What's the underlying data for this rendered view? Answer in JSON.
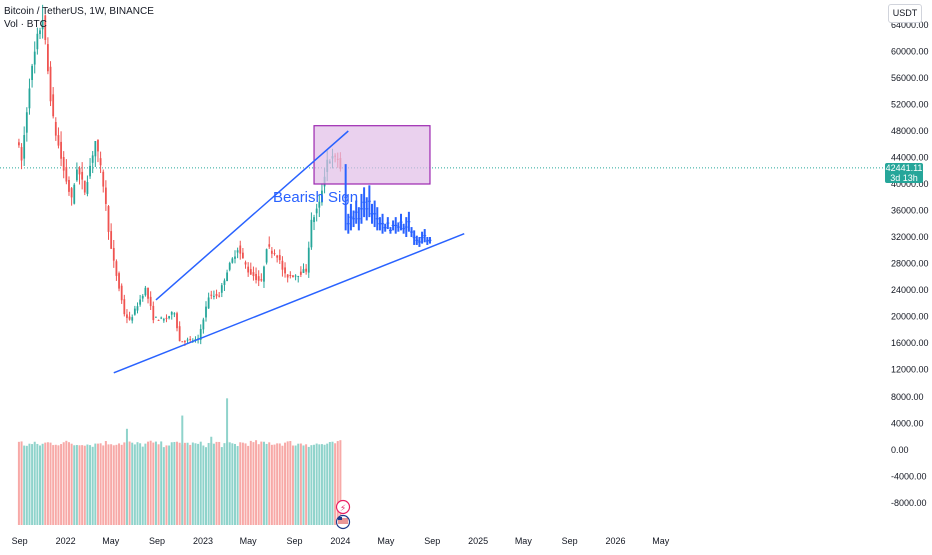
{
  "header": {
    "symbol": "Bitcoin / TetherUS, 1W, BINANCE",
    "volume_label": "Vol · BTC"
  },
  "currency_button": "USDT",
  "last_price": {
    "value": "42441.11",
    "countdown": "3d 13h"
  },
  "annotation": "Bearish Sign",
  "colors": {
    "up": "#26a69a",
    "down": "#ef5350",
    "vol_up": "#8fd3cb",
    "vol_down": "#f7a9a7",
    "trendline": "#2962ff",
    "projection": "#2962ff",
    "box_fill": "#e1bee7",
    "box_stroke": "#9c27b0",
    "price_line": "#26a69a",
    "axis_text": "#131722"
  },
  "icons": [
    "lightning-icon",
    "us-flag-icon"
  ],
  "chart_data": {
    "type": "candlestick",
    "interval": "1W",
    "price_axis": {
      "ticks": [
        64000,
        60000,
        56000,
        52000,
        48000,
        44000,
        40000,
        36000,
        32000,
        28000,
        24000,
        20000,
        16000,
        12000
      ],
      "tick_labels": [
        "64000.00",
        "60000.00",
        "56000.00",
        "52000.00",
        "48000.00",
        "44000.00",
        "40000.00",
        "36000.00",
        "32000.00",
        "28000.00",
        "24000.00",
        "20000.00",
        "16000.00",
        "12000.00"
      ]
    },
    "volume_axis": {
      "ticks": [
        8000,
        4000,
        0,
        -4000,
        -8000
      ],
      "tick_labels": [
        "8000.00",
        "4000.00",
        "0.00",
        "-4000.00",
        "-8000.00"
      ]
    },
    "time_axis": {
      "labels": [
        "Sep",
        "2022",
        "May",
        "Sep",
        "2023",
        "May",
        "Sep",
        "2024",
        "May",
        "Sep",
        "2025",
        "May",
        "Sep",
        "2026",
        "May"
      ],
      "positions": [
        "2021-09",
        "2022-01",
        "2022-05",
        "2022-09",
        "2023-01",
        "2023-05",
        "2023-09",
        "2024-01",
        "2024-05",
        "2024-09",
        "2025-01",
        "2025-05",
        "2025-09",
        "2026-01",
        "2026-05"
      ]
    },
    "price_anchors": [
      {
        "date": "2021-08-30",
        "close": 47000
      },
      {
        "date": "2021-09-13",
        "close": 43500
      },
      {
        "date": "2021-10-04",
        "close": 55000
      },
      {
        "date": "2021-10-25",
        "close": 62000
      },
      {
        "date": "2021-11-08",
        "close": 65000
      },
      {
        "date": "2021-11-22",
        "close": 57000
      },
      {
        "date": "2021-12-06",
        "close": 49500
      },
      {
        "date": "2022-01-03",
        "close": 42000
      },
      {
        "date": "2022-01-24",
        "close": 37500
      },
      {
        "date": "2022-02-07",
        "close": 42500
      },
      {
        "date": "2022-02-28",
        "close": 39000
      },
      {
        "date": "2022-03-28",
        "close": 46500
      },
      {
        "date": "2022-04-18",
        "close": 40000
      },
      {
        "date": "2022-05-09",
        "close": 30000
      },
      {
        "date": "2022-06-13",
        "close": 20500
      },
      {
        "date": "2022-06-27",
        "close": 19300
      },
      {
        "date": "2022-08-08",
        "close": 24200
      },
      {
        "date": "2022-08-29",
        "close": 19800
      },
      {
        "date": "2022-09-26",
        "close": 19500
      },
      {
        "date": "2022-10-24",
        "close": 20700
      },
      {
        "date": "2022-11-07",
        "close": 16300
      },
      {
        "date": "2022-12-26",
        "close": 16500
      },
      {
        "date": "2023-01-23",
        "close": 23000
      },
      {
        "date": "2023-02-20",
        "close": 23300
      },
      {
        "date": "2023-03-13",
        "close": 26900
      },
      {
        "date": "2023-04-10",
        "close": 30300
      },
      {
        "date": "2023-05-08",
        "close": 26900
      },
      {
        "date": "2023-06-12",
        "close": 25100
      },
      {
        "date": "2023-06-26",
        "close": 30500
      },
      {
        "date": "2023-07-24",
        "close": 29300
      },
      {
        "date": "2023-08-14",
        "close": 26100
      },
      {
        "date": "2023-09-11",
        "close": 26300
      },
      {
        "date": "2023-10-09",
        "close": 27000
      },
      {
        "date": "2023-10-23",
        "close": 34300
      },
      {
        "date": "2023-11-13",
        "close": 37000
      },
      {
        "date": "2023-12-04",
        "close": 43700
      },
      {
        "date": "2024-01-01",
        "close": 43900
      },
      {
        "date": "2024-01-08",
        "close": 42441
      }
    ],
    "trendlines": [
      {
        "start": {
          "date": "2022-05-09",
          "price": 11500
        },
        "end": {
          "date": "2024-11-25",
          "price": 32500
        }
      },
      {
        "start": {
          "date": "2022-08-29",
          "price": 22500
        },
        "end": {
          "date": "2024-01-22",
          "price": 48000
        }
      }
    ],
    "rectangle": {
      "start": {
        "date": "2023-10-23",
        "price": 48800
      },
      "end": {
        "date": "2024-08-26",
        "price": 40000
      }
    },
    "projected_bars": [
      {
        "date": "2024-01-15",
        "high": 43000,
        "low": 33000
      },
      {
        "date": "2024-01-22",
        "high": 35500,
        "low": 32500
      },
      {
        "date": "2024-01-29",
        "high": 37000,
        "low": 33000
      },
      {
        "date": "2024-02-05",
        "high": 36000,
        "low": 33500
      },
      {
        "date": "2024-02-12",
        "high": 37500,
        "low": 34000
      },
      {
        "date": "2024-02-19",
        "high": 36500,
        "low": 33000
      },
      {
        "date": "2024-02-26",
        "high": 38500,
        "low": 34000
      },
      {
        "date": "2024-03-04",
        "high": 39500,
        "low": 35000
      },
      {
        "date": "2024-03-11",
        "high": 38000,
        "low": 34500
      },
      {
        "date": "2024-03-18",
        "high": 39800,
        "low": 35000
      },
      {
        "date": "2024-03-25",
        "high": 37000,
        "low": 34000
      },
      {
        "date": "2024-04-01",
        "high": 37500,
        "low": 33500
      },
      {
        "date": "2024-04-08",
        "high": 36500,
        "low": 33000
      },
      {
        "date": "2024-04-15",
        "high": 35000,
        "low": 33000
      },
      {
        "date": "2024-04-22",
        "high": 35500,
        "low": 32500
      },
      {
        "date": "2024-04-29",
        "high": 34000,
        "low": 32800
      },
      {
        "date": "2024-05-06",
        "high": 35000,
        "low": 33200
      },
      {
        "date": "2024-05-13",
        "high": 33500,
        "low": 32500
      },
      {
        "date": "2024-05-20",
        "high": 34500,
        "low": 33000
      },
      {
        "date": "2024-05-27",
        "high": 35000,
        "low": 32500
      },
      {
        "date": "2024-06-03",
        "high": 34200,
        "low": 32800
      },
      {
        "date": "2024-06-10",
        "high": 35500,
        "low": 33000
      },
      {
        "date": "2024-06-17",
        "high": 34000,
        "low": 32500
      },
      {
        "date": "2024-06-24",
        "high": 35000,
        "low": 32000
      },
      {
        "date": "2024-07-01",
        "high": 35800,
        "low": 32800
      },
      {
        "date": "2024-07-08",
        "high": 33500,
        "low": 32000
      },
      {
        "date": "2024-07-15",
        "high": 33000,
        "low": 30800
      },
      {
        "date": "2024-07-22",
        "high": 32200,
        "low": 30800
      },
      {
        "date": "2024-07-29",
        "high": 32000,
        "low": 30500
      },
      {
        "date": "2024-08-05",
        "high": 32800,
        "low": 31000
      },
      {
        "date": "2024-08-12",
        "high": 33200,
        "low": 31200
      },
      {
        "date": "2024-08-19",
        "high": 32000,
        "low": 30800
      },
      {
        "date": "2024-08-26",
        "high": 32000,
        "low": 31000
      }
    ],
    "volume_highlights": [
      {
        "date": "2022-11-07",
        "value": 5200
      },
      {
        "date": "2022-06-13",
        "value": 3200
      },
      {
        "date": "2023-03-06",
        "value": 7800
      },
      {
        "date": "2023-01-23",
        "value": 2000
      }
    ]
  }
}
